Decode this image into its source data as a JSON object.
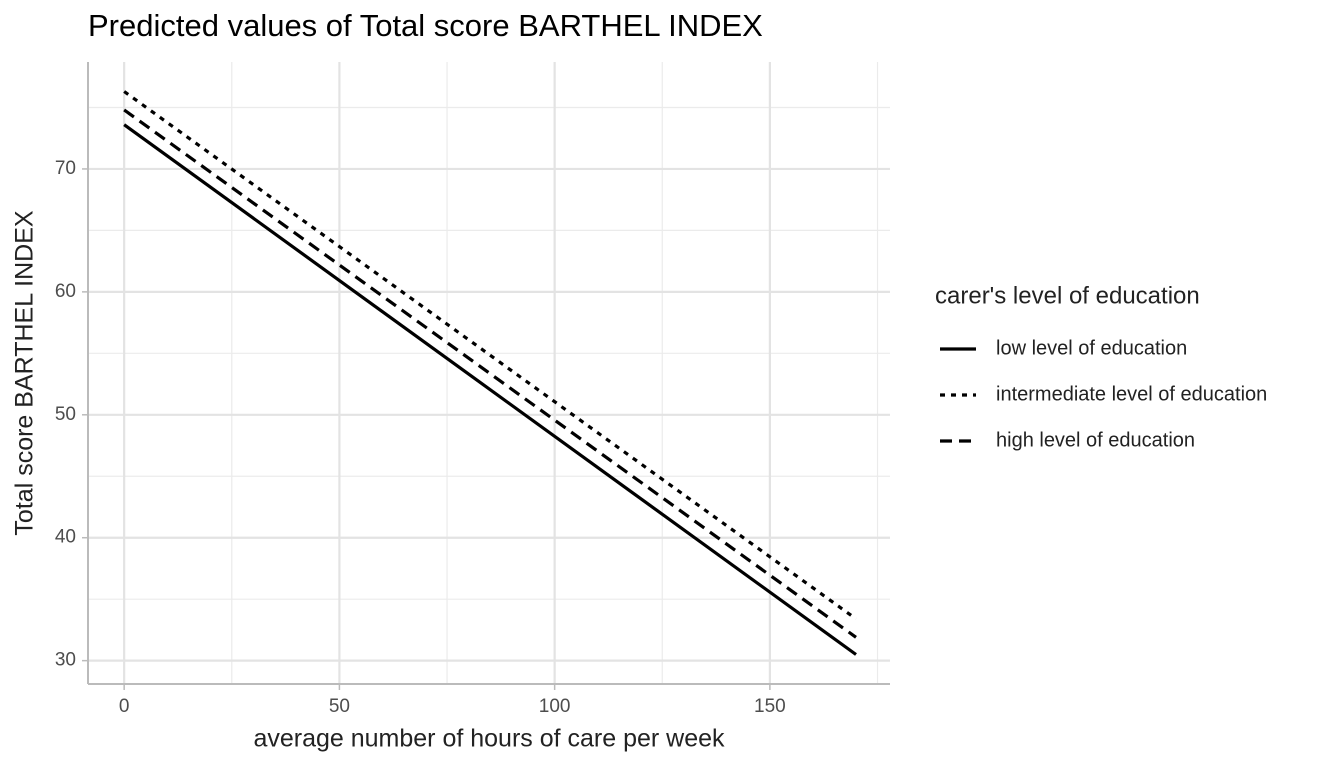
{
  "chart_data": {
    "type": "line",
    "title": "Predicted values of Total score BARTHEL INDEX",
    "x_label": "average number of hours of care per week",
    "y_label": "Total score BARTHEL INDEX",
    "legend_title": "carer's level of education",
    "legend_position": "right",
    "x": [
      0,
      170
    ],
    "series": [
      {
        "name": "low level of education",
        "color": "#000000",
        "linetype": "solid",
        "values": [
          73.6,
          30.5
        ]
      },
      {
        "name": "intermediate level of education",
        "color": "#000000",
        "linetype": "dotted",
        "values": [
          76.3,
          33.4
        ]
      },
      {
        "name": "high level of education",
        "color": "#000000",
        "linetype": "dashed",
        "values": [
          74.8,
          31.9
        ]
      }
    ],
    "xlim": [
      -8.4,
      177.9
    ],
    "xticks": [
      0,
      50,
      100,
      150
    ],
    "x_minor_grid": [
      25,
      75,
      125,
      175
    ],
    "ylim": [
      28.1,
      78.7
    ],
    "yticks": [
      30,
      40,
      50,
      60,
      70
    ],
    "y_minor_grid": [
      35,
      45,
      55,
      65,
      75
    ],
    "grid": true
  }
}
